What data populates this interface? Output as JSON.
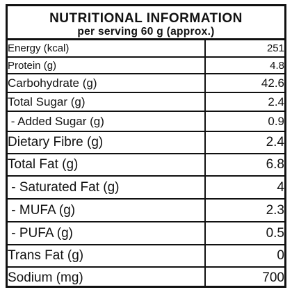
{
  "title": "NUTRITIONAL INFORMATION",
  "subtitle": "per serving 60 g (approx.)",
  "rows": [
    {
      "name": "Energy (kcal)",
      "value": "251"
    },
    {
      "name": "Protein (g)",
      "value": "4.8"
    },
    {
      "name": "Carbohydrate (g)",
      "value": "42.6"
    },
    {
      "name": "Total Sugar (g)",
      "value": "2.4"
    },
    {
      "name": " - Added Sugar (g)",
      "value": "0.9"
    },
    {
      "name": "Dietary Fibre (g)",
      "value": "2.4"
    },
    {
      "name": "Total Fat (g)",
      "value": "6.8"
    },
    {
      "name": " - Saturated Fat (g)",
      "value": "4"
    },
    {
      "name": " - MUFA (g)",
      "value": "2.3"
    },
    {
      "name": " - PUFA (g)",
      "value": "0.5"
    },
    {
      "name": "Trans Fat (g)",
      "value": "0"
    },
    {
      "name": "Sodium (mg)",
      "value": "700"
    }
  ]
}
